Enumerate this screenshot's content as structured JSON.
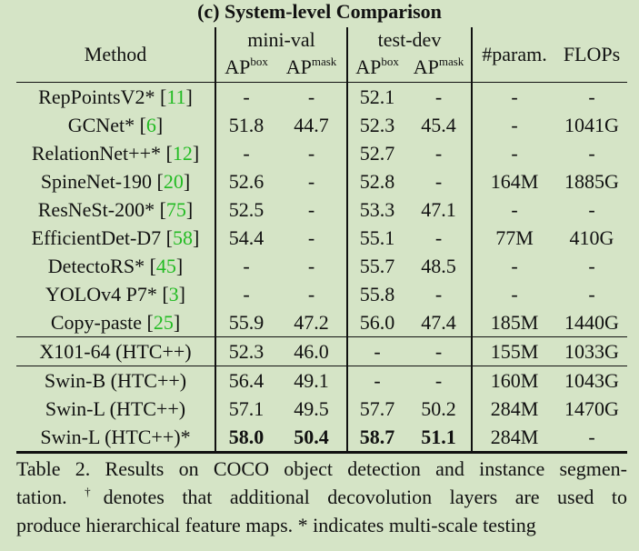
{
  "title": "(c) System-level Comparison",
  "headers": {
    "method": "Method",
    "group_minival": "mini-val",
    "group_testdev": "test-dev",
    "ap_box": "AP",
    "ap_box_sup": "box",
    "ap_mask": "AP",
    "ap_mask_sup": "mask",
    "param": "#param.",
    "flops": "FLOPs"
  },
  "rows": [
    {
      "name": "RepPointsV2* [",
      "ref": "11",
      "close": "]",
      "mv_box": "-",
      "mv_mask": "-",
      "td_box": "52.1",
      "td_mask": "-",
      "param": "-",
      "flops": "-"
    },
    {
      "name": "GCNet* [",
      "ref": "6",
      "close": "]",
      "mv_box": "51.8",
      "mv_mask": "44.7",
      "td_box": "52.3",
      "td_mask": "45.4",
      "param": "-",
      "flops": "1041G"
    },
    {
      "name": "RelationNet++* [",
      "ref": "12",
      "close": "]",
      "mv_box": "-",
      "mv_mask": "-",
      "td_box": "52.7",
      "td_mask": "-",
      "param": "-",
      "flops": "-"
    },
    {
      "name": "SpineNet-190 [",
      "ref": "20",
      "close": "]",
      "mv_box": "52.6",
      "mv_mask": "-",
      "td_box": "52.8",
      "td_mask": "-",
      "param": "164M",
      "flops": "1885G"
    },
    {
      "name": "ResNeSt-200* [",
      "ref": "75",
      "close": "]",
      "mv_box": "52.5",
      "mv_mask": "-",
      "td_box": "53.3",
      "td_mask": "47.1",
      "param": "-",
      "flops": "-"
    },
    {
      "name": "EfficientDet-D7 [",
      "ref": "58",
      "close": "]",
      "mv_box": "54.4",
      "mv_mask": "-",
      "td_box": "55.1",
      "td_mask": "-",
      "param": "77M",
      "flops": "410G"
    },
    {
      "name": "DetectoRS* [",
      "ref": "45",
      "close": "]",
      "mv_box": "-",
      "mv_mask": "-",
      "td_box": "55.7",
      "td_mask": "48.5",
      "param": "-",
      "flops": "-"
    },
    {
      "name": "YOLOv4 P7* [",
      "ref": "3",
      "close": "]",
      "mv_box": "-",
      "mv_mask": "-",
      "td_box": "55.8",
      "td_mask": "-",
      "param": "-",
      "flops": "-"
    },
    {
      "name": "Copy-paste [",
      "ref": "25",
      "close": "]",
      "mv_box": "55.9",
      "mv_mask": "47.2",
      "td_box": "56.0",
      "td_mask": "47.4",
      "param": "185M",
      "flops": "1440G"
    },
    {
      "name": "X101-64 (HTC++)",
      "mv_box": "52.3",
      "mv_mask": "46.0",
      "td_box": "-",
      "td_mask": "-",
      "param": "155M",
      "flops": "1033G"
    },
    {
      "name": "Swin-B (HTC++)",
      "mv_box": "56.4",
      "mv_mask": "49.1",
      "td_box": "-",
      "td_mask": "-",
      "param": "160M",
      "flops": "1043G"
    },
    {
      "name": "Swin-L (HTC++)",
      "mv_box": "57.1",
      "mv_mask": "49.5",
      "td_box": "57.7",
      "td_mask": "50.2",
      "param": "284M",
      "flops": "1470G"
    },
    {
      "name": "Swin-L (HTC++)*",
      "mv_box": "58.0",
      "mv_mask": "50.4",
      "td_box": "58.7",
      "td_mask": "51.1",
      "param": "284M",
      "flops": "-"
    }
  ],
  "caption": {
    "line1": "Table 2. Results on COCO object detection and instance segmen-",
    "line2_a": "tation. ",
    "dagger": "†",
    "line2_b": "denotes that additional decovolution layers are used to",
    "line3": "produce hierarchical feature maps. * indicates multi-scale testing"
  }
}
